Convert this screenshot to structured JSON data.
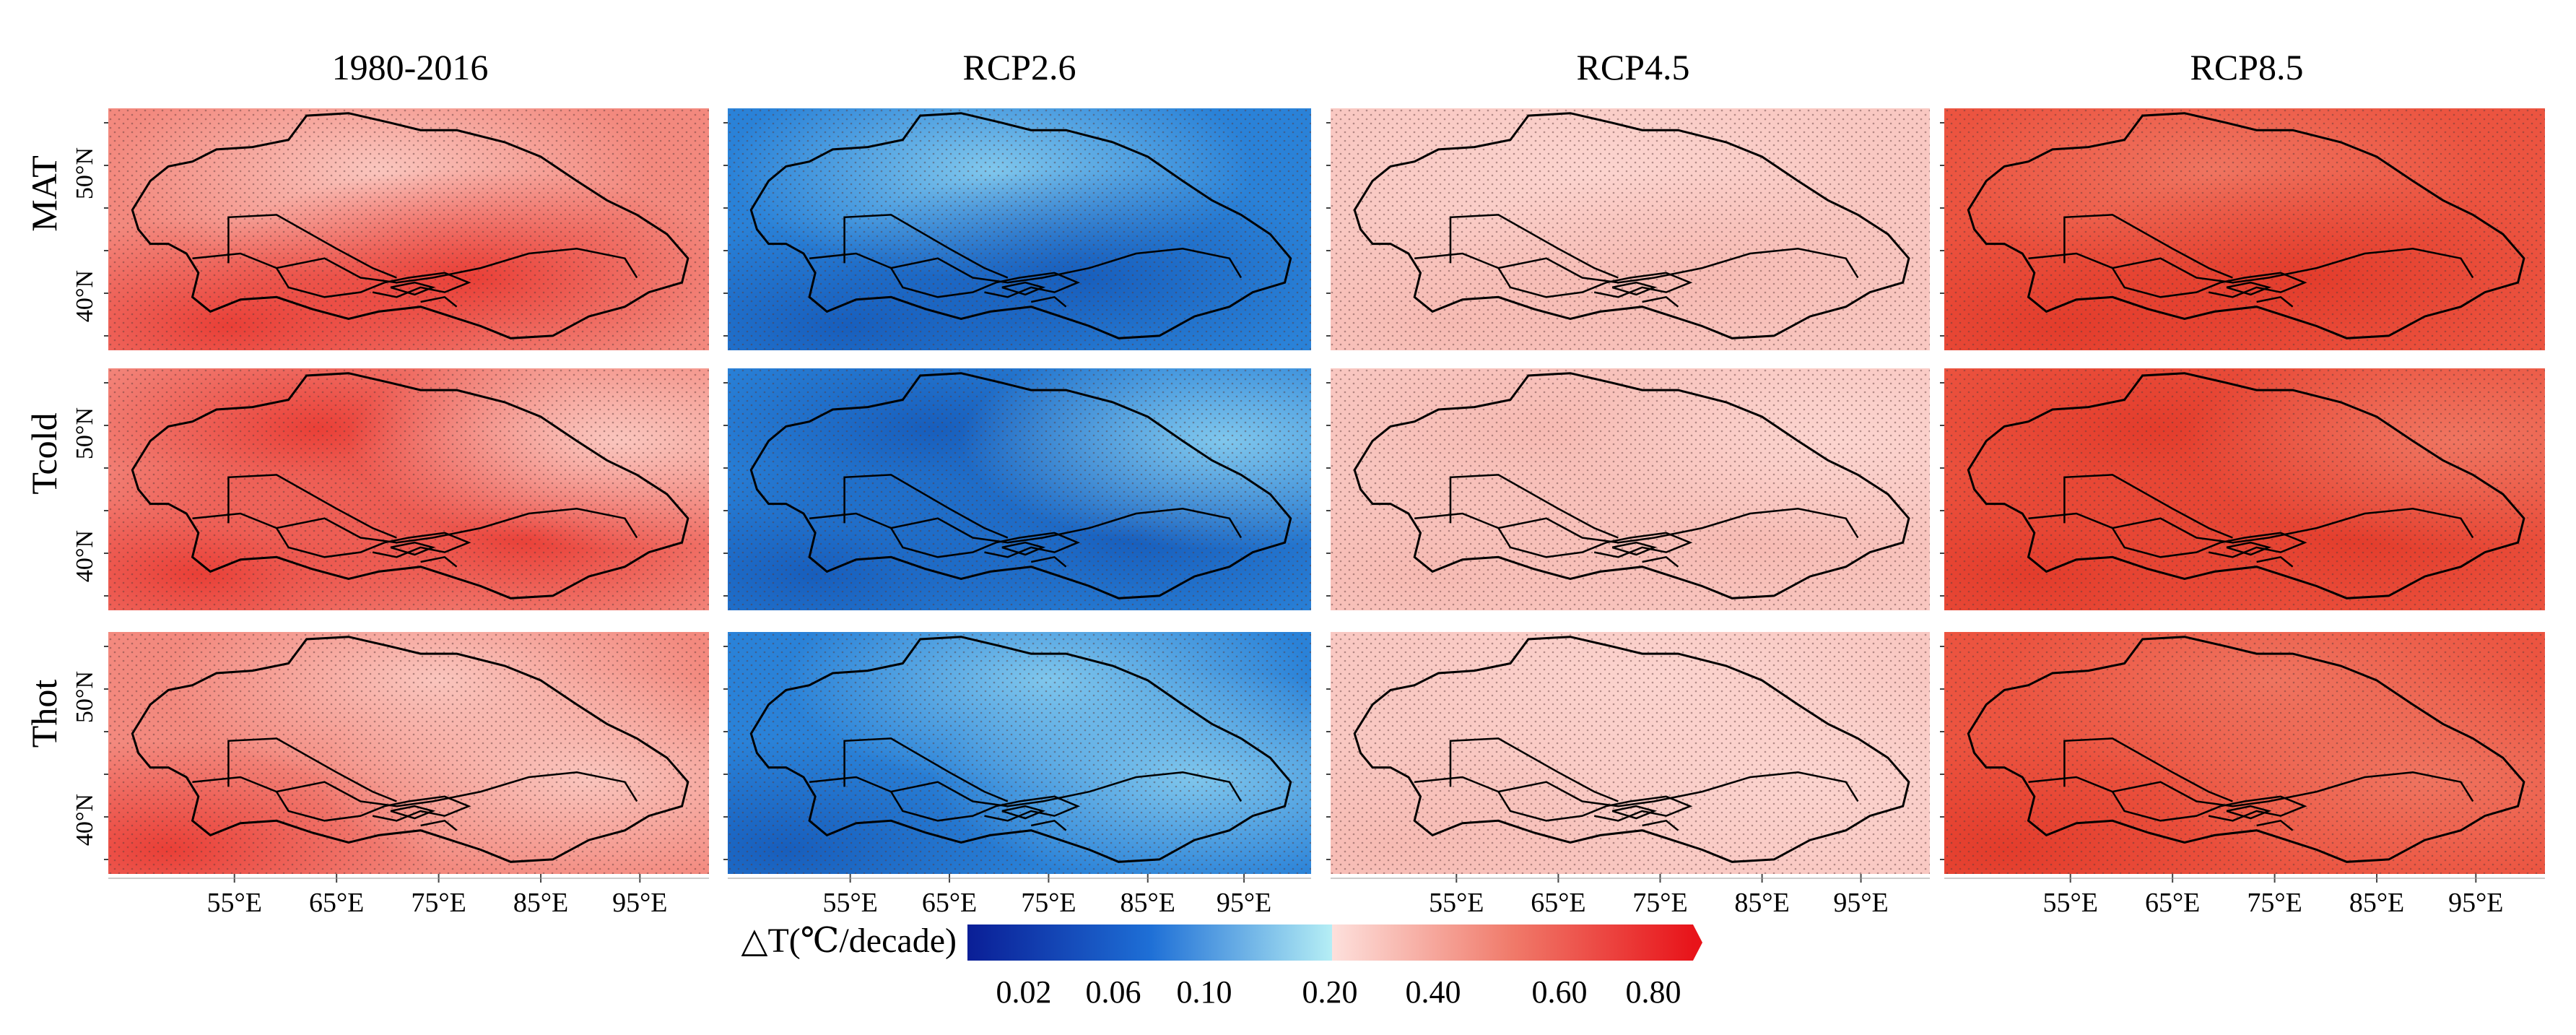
{
  "figure": {
    "columns": [
      {
        "title": "1980-2016",
        "scheme": "historical"
      },
      {
        "title": "RCP2.6",
        "scheme": "rcp26"
      },
      {
        "title": "RCP4.5",
        "scheme": "rcp45"
      },
      {
        "title": "RCP8.5",
        "scheme": "rcp85"
      }
    ],
    "rows": [
      "MAT",
      "Tcold",
      "Thot"
    ],
    "lat_labels": [
      "50°N",
      "40°N"
    ],
    "lon_labels": [
      "55°E",
      "65°E",
      "75°E",
      "85°E",
      "95°E"
    ]
  },
  "legend": {
    "title": "△T(℃/decade)",
    "ticks": [
      "0.02",
      "0.06",
      "0.10",
      "0.20",
      "0.40",
      "0.60",
      "0.80"
    ],
    "colors": {
      "dark_blue": "#0a1e96",
      "mid_blue": "#1e6fd6",
      "light_blue": "#b5eef5",
      "pale_pink": "#fde0dc",
      "mid_red": "#f07a6a",
      "dark_red": "#e8141a"
    }
  },
  "panel_colors": {
    "historical": {
      "base": "#f3897e",
      "light": "#fbd0c9",
      "dark": "#e8322a"
    },
    "rcp26": {
      "base": "#2a82d8",
      "light": "#8fd3f0",
      "dark": "#1458b8"
    },
    "rcp45": {
      "base": "#f9c8c2",
      "light": "#fcd6d1",
      "dark": "#f6b8b0"
    },
    "rcp85": {
      "base": "#ec5440",
      "light": "#f07a66",
      "dark": "#e23828"
    }
  }
}
